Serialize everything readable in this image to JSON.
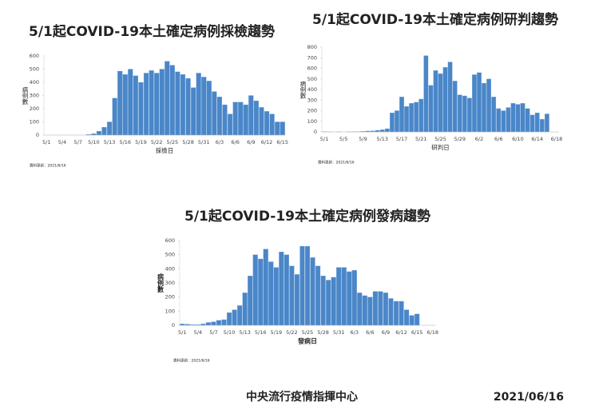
{
  "chart_data": [
    {
      "type": "bar",
      "title": "5/1起COVID-19本土確定病例採檢趨勢",
      "x_label": "採檢日",
      "y_label": "病例數",
      "note": "資料更新：2021/6/16",
      "color": "#4a86c8",
      "categories": [
        "5/1",
        null,
        null,
        "5/4",
        null,
        null,
        "5/7",
        null,
        null,
        "5/10",
        null,
        null,
        "5/13",
        null,
        null,
        "5/16",
        null,
        null,
        "5/19",
        null,
        null,
        "5/22",
        null,
        null,
        "5/25",
        null,
        null,
        "5/28",
        null,
        null,
        "5/31",
        null,
        null,
        "6/3",
        null,
        null,
        "6/6",
        null,
        null,
        "6/9",
        null,
        null,
        "6/12",
        null,
        null,
        "6/15"
      ],
      "values": [
        0,
        0,
        0,
        0,
        0,
        0,
        0,
        0,
        5,
        10,
        30,
        60,
        100,
        280,
        485,
        460,
        500,
        450,
        400,
        470,
        490,
        470,
        500,
        560,
        530,
        480,
        460,
        430,
        360,
        470,
        440,
        410,
        330,
        290,
        230,
        160,
        250,
        250,
        230,
        300,
        260,
        210,
        180,
        160,
        100,
        100
      ],
      "ylim": [
        0,
        600
      ],
      "yticks": [
        0,
        100,
        200,
        300,
        400,
        500,
        600
      ]
    },
    {
      "type": "bar",
      "title": "5/1起COVID-19本土確定病例研判趨勢",
      "x_label": "研判日",
      "y_label": "病例數",
      "note": "資料更新：2021/6/16",
      "color": "#4a86c8",
      "categories": [
        "5/1",
        null,
        null,
        null,
        "5/5",
        null,
        null,
        null,
        "5/9",
        null,
        null,
        null,
        "5/13",
        null,
        null,
        null,
        "5/17",
        null,
        null,
        null,
        "5/21",
        null,
        null,
        null,
        "5/25",
        null,
        null,
        null,
        "5/29",
        null,
        null,
        null,
        "6/2",
        null,
        null,
        null,
        "6/6",
        null,
        null,
        null,
        "6/10",
        null,
        null,
        null,
        "6/14",
        null,
        null,
        null,
        "6/18"
      ],
      "values": [
        2,
        1,
        0,
        1,
        0,
        1,
        2,
        3,
        5,
        8,
        10,
        15,
        20,
        30,
        180,
        200,
        330,
        240,
        270,
        280,
        310,
        720,
        440,
        580,
        550,
        610,
        660,
        480,
        350,
        340,
        320,
        540,
        560,
        460,
        500,
        330,
        220,
        200,
        230,
        270,
        260,
        270,
        220,
        160,
        180,
        120,
        170,
        null,
        null
      ],
      "ylim": [
        0,
        800
      ],
      "yticks": [
        0,
        100,
        200,
        300,
        400,
        500,
        600,
        700,
        800
      ]
    },
    {
      "type": "bar",
      "title": "5/1起COVID-19本土確定病例發病趨勢",
      "x_label": "發病日",
      "y_label": "病例數",
      "note": "資料更新：2021/6/16",
      "color": "#4a86c8",
      "categories": [
        "5/1",
        null,
        null,
        "5/4",
        null,
        null,
        "5/7",
        null,
        null,
        "5/10",
        null,
        null,
        "5/13",
        null,
        null,
        "5/16",
        null,
        null,
        "5/19",
        null,
        null,
        "5/22",
        null,
        null,
        "5/25",
        null,
        null,
        "5/28",
        null,
        null,
        "5/31",
        null,
        null,
        "6/3",
        null,
        null,
        "6/6",
        null,
        null,
        "6/9",
        null,
        null,
        "6/12",
        null,
        null,
        "6/15",
        null,
        null,
        "6/18"
      ],
      "values": [
        10,
        8,
        5,
        5,
        10,
        20,
        25,
        35,
        40,
        90,
        110,
        140,
        230,
        350,
        500,
        470,
        540,
        450,
        410,
        520,
        500,
        420,
        360,
        560,
        560,
        480,
        420,
        350,
        320,
        340,
        410,
        410,
        380,
        390,
        230,
        210,
        200,
        240,
        240,
        230,
        190,
        170,
        170,
        110,
        70,
        80,
        null,
        null,
        null
      ],
      "ylim": [
        0,
        600
      ],
      "yticks": [
        0,
        100,
        200,
        300,
        400,
        500,
        600
      ]
    }
  ],
  "footer": {
    "organization": "中央流行疫情指揮中心",
    "date": "2021/06/16"
  }
}
